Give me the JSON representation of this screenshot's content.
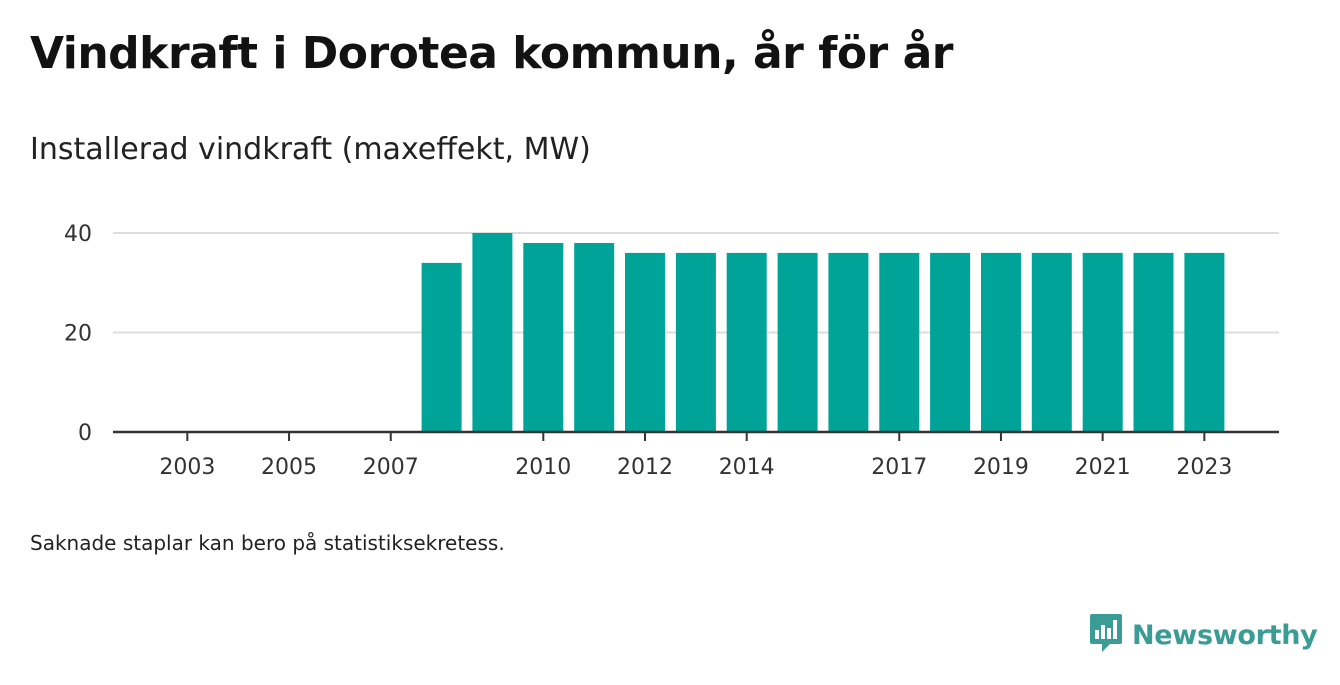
{
  "title": "Vindkraft i Dorotea kommun, år för år",
  "subtitle": "Installerad vindkraft (maxeffekt, MW)",
  "footnote": "Saknade staplar kan bero på statistiksekretess.",
  "brand": {
    "name": "Newsworthy",
    "icon": "newsworthy-bar-chart-logo-icon",
    "color": "#3a9c95"
  },
  "chart_data": {
    "type": "bar",
    "categories": [
      "2002",
      "2003",
      "2004",
      "2005",
      "2006",
      "2007",
      "2008",
      "2009",
      "2010",
      "2011",
      "2012",
      "2013",
      "2014",
      "2015",
      "2016",
      "2017",
      "2018",
      "2019",
      "2020",
      "2021",
      "2022",
      "2023"
    ],
    "values": [
      null,
      null,
      null,
      null,
      null,
      null,
      34,
      40,
      38,
      38,
      36,
      36,
      36,
      36,
      36,
      36,
      36,
      36,
      36,
      36,
      36,
      36
    ],
    "x_tick_labels": [
      "2003",
      "2005",
      "2007",
      "2010",
      "2012",
      "2014",
      "2017",
      "2019",
      "2021",
      "2023"
    ],
    "y_ticks": [
      0,
      20,
      40
    ],
    "ylim": [
      0,
      40
    ],
    "xlabel": "",
    "ylabel": "",
    "grid": "horizontal",
    "bar_color": "#00a398",
    "grid_color": "#dddddd",
    "axis_color": "#333333"
  }
}
